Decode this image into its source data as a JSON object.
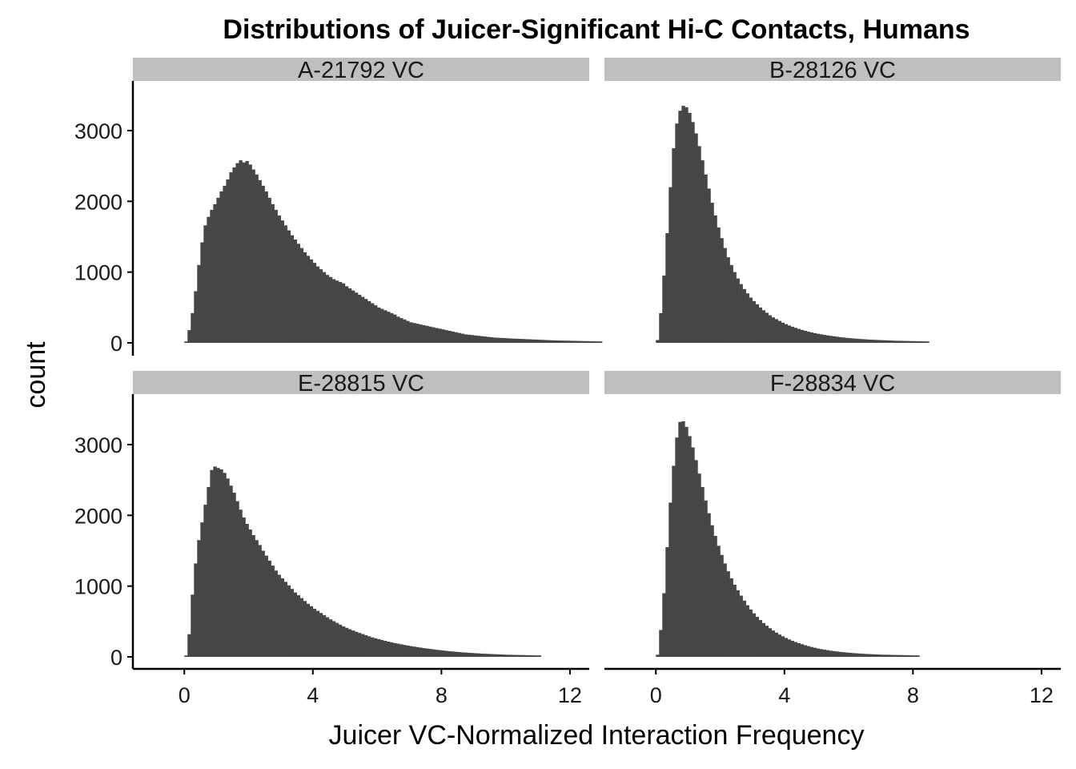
{
  "chart_data": {
    "type": "bar",
    "title": "Distributions of Juicer-Significant Hi-C Contacts, Humans",
    "xlabel": "Juicer VC-Normalized Interaction Frequency",
    "ylabel": "count",
    "xlim": [
      -1.6,
      12.6
    ],
    "ylim": [
      0,
      3700
    ],
    "x_ticks": [
      0,
      4,
      8,
      12
    ],
    "y_ticks": [
      0,
      1000,
      2000,
      3000
    ],
    "bin_width": 0.1,
    "layout": "2x2 facets",
    "colors": {
      "bar": "#464646",
      "strip": "#bfbfbf",
      "axis": "#000000"
    },
    "panels": [
      {
        "label": "A-21792  VC",
        "x_start": 0.0,
        "counts": [
          20,
          180,
          420,
          730,
          1100,
          1420,
          1660,
          1780,
          1880,
          1960,
          2050,
          2140,
          2220,
          2310,
          2410,
          2480,
          2540,
          2580,
          2550,
          2570,
          2520,
          2450,
          2380,
          2300,
          2220,
          2140,
          2050,
          1960,
          1880,
          1800,
          1730,
          1660,
          1590,
          1520,
          1460,
          1400,
          1340,
          1280,
          1230,
          1180,
          1130,
          1080,
          1040,
          1000,
          960,
          930,
          900,
          880,
          860,
          840,
          800,
          770,
          740,
          710,
          680,
          650,
          620,
          590,
          560,
          530,
          500,
          480,
          460,
          440,
          420,
          400,
          370,
          350,
          330,
          310,
          290,
          280,
          270,
          260,
          250,
          240,
          230,
          220,
          210,
          200,
          190,
          180,
          170,
          160,
          150,
          140,
          130,
          120,
          115,
          110,
          105,
          100,
          95,
          90,
          85,
          80,
          75,
          72,
          70,
          68,
          65,
          62,
          60,
          58,
          56,
          54,
          52,
          50,
          48,
          46,
          44,
          42,
          40,
          38,
          36,
          34,
          33,
          32,
          31,
          30,
          29,
          28,
          27,
          26,
          25,
          24,
          23,
          22,
          21,
          20
        ]
      },
      {
        "label": "B-28126  VC",
        "x_start": 0.0,
        "counts": [
          40,
          420,
          950,
          1550,
          2200,
          2750,
          3100,
          3280,
          3350,
          3330,
          3250,
          3120,
          2960,
          2780,
          2580,
          2380,
          2180,
          1980,
          1800,
          1630,
          1480,
          1340,
          1210,
          1100,
          1000,
          910,
          830,
          760,
          700,
          640,
          590,
          545,
          500,
          460,
          425,
          390,
          360,
          335,
          310,
          285,
          265,
          245,
          228,
          212,
          197,
          183,
          170,
          158,
          147,
          137,
          128,
          120,
          112,
          105,
          98,
          92,
          86,
          80,
          75,
          70,
          66,
          62,
          58,
          55,
          52,
          49,
          46,
          44,
          42,
          40,
          38,
          36,
          34,
          32,
          30,
          29,
          28,
          27,
          26,
          25,
          24,
          23,
          22,
          21,
          20
        ]
      },
      {
        "label": "E-28815  VC",
        "x_start": 0.0,
        "counts": [
          20,
          320,
          880,
          1320,
          1650,
          1900,
          2150,
          2400,
          2640,
          2690,
          2670,
          2650,
          2600,
          2520,
          2420,
          2320,
          2200,
          2080,
          1970,
          1880,
          1800,
          1720,
          1650,
          1580,
          1500,
          1430,
          1360,
          1290,
          1220,
          1160,
          1110,
          1060,
          1010,
          960,
          910,
          870,
          830,
          790,
          750,
          715,
          680,
          650,
          620,
          590,
          560,
          530,
          505,
          480,
          455,
          430,
          410,
          390,
          372,
          355,
          338,
          322,
          306,
          290,
          275,
          262,
          250,
          238,
          226,
          215,
          205,
          195,
          186,
          177,
          168,
          160,
          152,
          145,
          138,
          131,
          124,
          118,
          112,
          106,
          100,
          95,
          90,
          85,
          80,
          76,
          72,
          68,
          64,
          61,
          58,
          55,
          52,
          49,
          46,
          44,
          42,
          40,
          38,
          36,
          34,
          32,
          30,
          29,
          28,
          27,
          26,
          25,
          24,
          23,
          22,
          21,
          20
        ]
      },
      {
        "label": "F-28834  VC",
        "x_start": 0.0,
        "counts": [
          30,
          380,
          900,
          1550,
          2180,
          2700,
          3100,
          3320,
          3330,
          3250,
          3120,
          2960,
          2780,
          2590,
          2400,
          2210,
          2030,
          1860,
          1710,
          1570,
          1440,
          1320,
          1210,
          1110,
          1020,
          940,
          865,
          795,
          730,
          670,
          615,
          565,
          520,
          478,
          440,
          405,
          372,
          342,
          315,
          290,
          267,
          246,
          227,
          209,
          193,
          178,
          164,
          151,
          139,
          128,
          118,
          109,
          101,
          94,
          87,
          81,
          75,
          70,
          65,
          61,
          57,
          53,
          50,
          47,
          44,
          41,
          39,
          37,
          35,
          33,
          31,
          30,
          29,
          28,
          27,
          26,
          25,
          24,
          23,
          22,
          21,
          20
        ]
      }
    ]
  }
}
